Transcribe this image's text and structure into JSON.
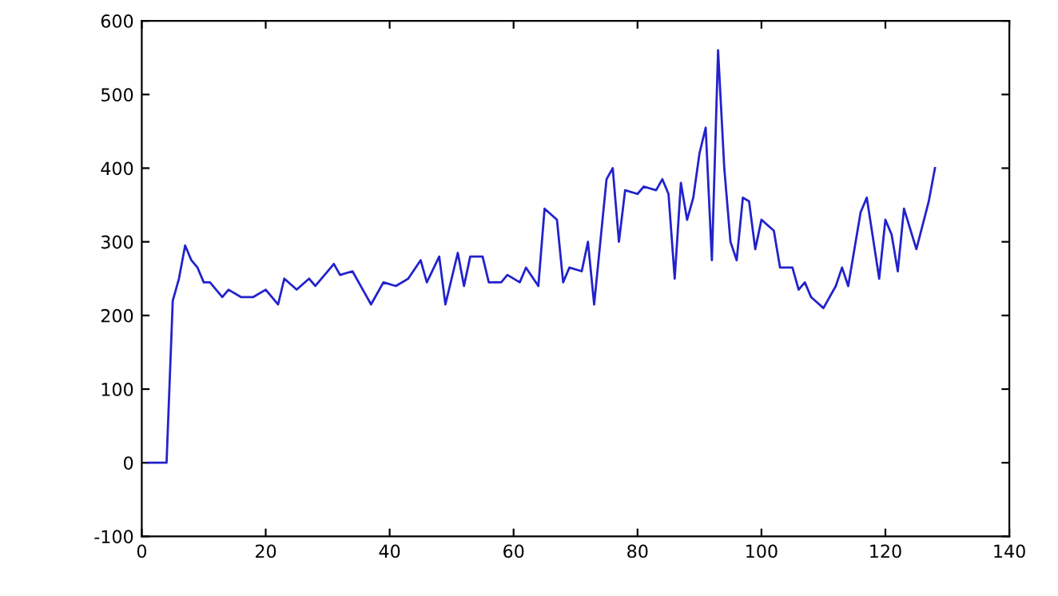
{
  "chart_data": {
    "type": "line",
    "xlim": [
      0,
      140
    ],
    "ylim": [
      -100,
      600
    ],
    "xticks": [
      0,
      20,
      40,
      60,
      80,
      100,
      120,
      140
    ],
    "yticks": [
      -100,
      0,
      100,
      200,
      300,
      400,
      500,
      600
    ],
    "grid": false,
    "series": [
      {
        "color": "#2222cc",
        "x": [
          1,
          2,
          3,
          4,
          5,
          6,
          7,
          8,
          9,
          10,
          11,
          12,
          13,
          14,
          16,
          18,
          20,
          22,
          23,
          25,
          27,
          28,
          30,
          31,
          32,
          34,
          36,
          37,
          39,
          41,
          43,
          45,
          46,
          48,
          49,
          51,
          52,
          53,
          55,
          56,
          58,
          59,
          61,
          62,
          64,
          65,
          67,
          68,
          69,
          71,
          72,
          73,
          75,
          76,
          77,
          78,
          80,
          81,
          83,
          84,
          85,
          86,
          87,
          88,
          89,
          90,
          91,
          92,
          93,
          94,
          95,
          96,
          97,
          98,
          99,
          100,
          102,
          103,
          105,
          106,
          107,
          108,
          110,
          112,
          113,
          114,
          116,
          117,
          119,
          120,
          121,
          122,
          123,
          125,
          127,
          128
        ],
        "values": [
          0,
          0,
          0,
          0,
          220,
          250,
          295,
          275,
          265,
          245,
          245,
          235,
          225,
          235,
          225,
          225,
          235,
          215,
          250,
          235,
          250,
          240,
          260,
          270,
          255,
          260,
          230,
          215,
          245,
          240,
          250,
          275,
          245,
          280,
          215,
          285,
          240,
          280,
          280,
          245,
          245,
          255,
          245,
          265,
          240,
          345,
          330,
          245,
          265,
          260,
          300,
          215,
          385,
          400,
          300,
          370,
          365,
          375,
          370,
          385,
          365,
          250,
          380,
          330,
          360,
          420,
          455,
          275,
          560,
          400,
          300,
          275,
          360,
          355,
          290,
          330,
          315,
          265,
          265,
          235,
          245,
          225,
          210,
          240,
          265,
          240,
          340,
          360,
          250,
          330,
          310,
          260,
          345,
          290,
          355,
          400
        ]
      }
    ]
  }
}
